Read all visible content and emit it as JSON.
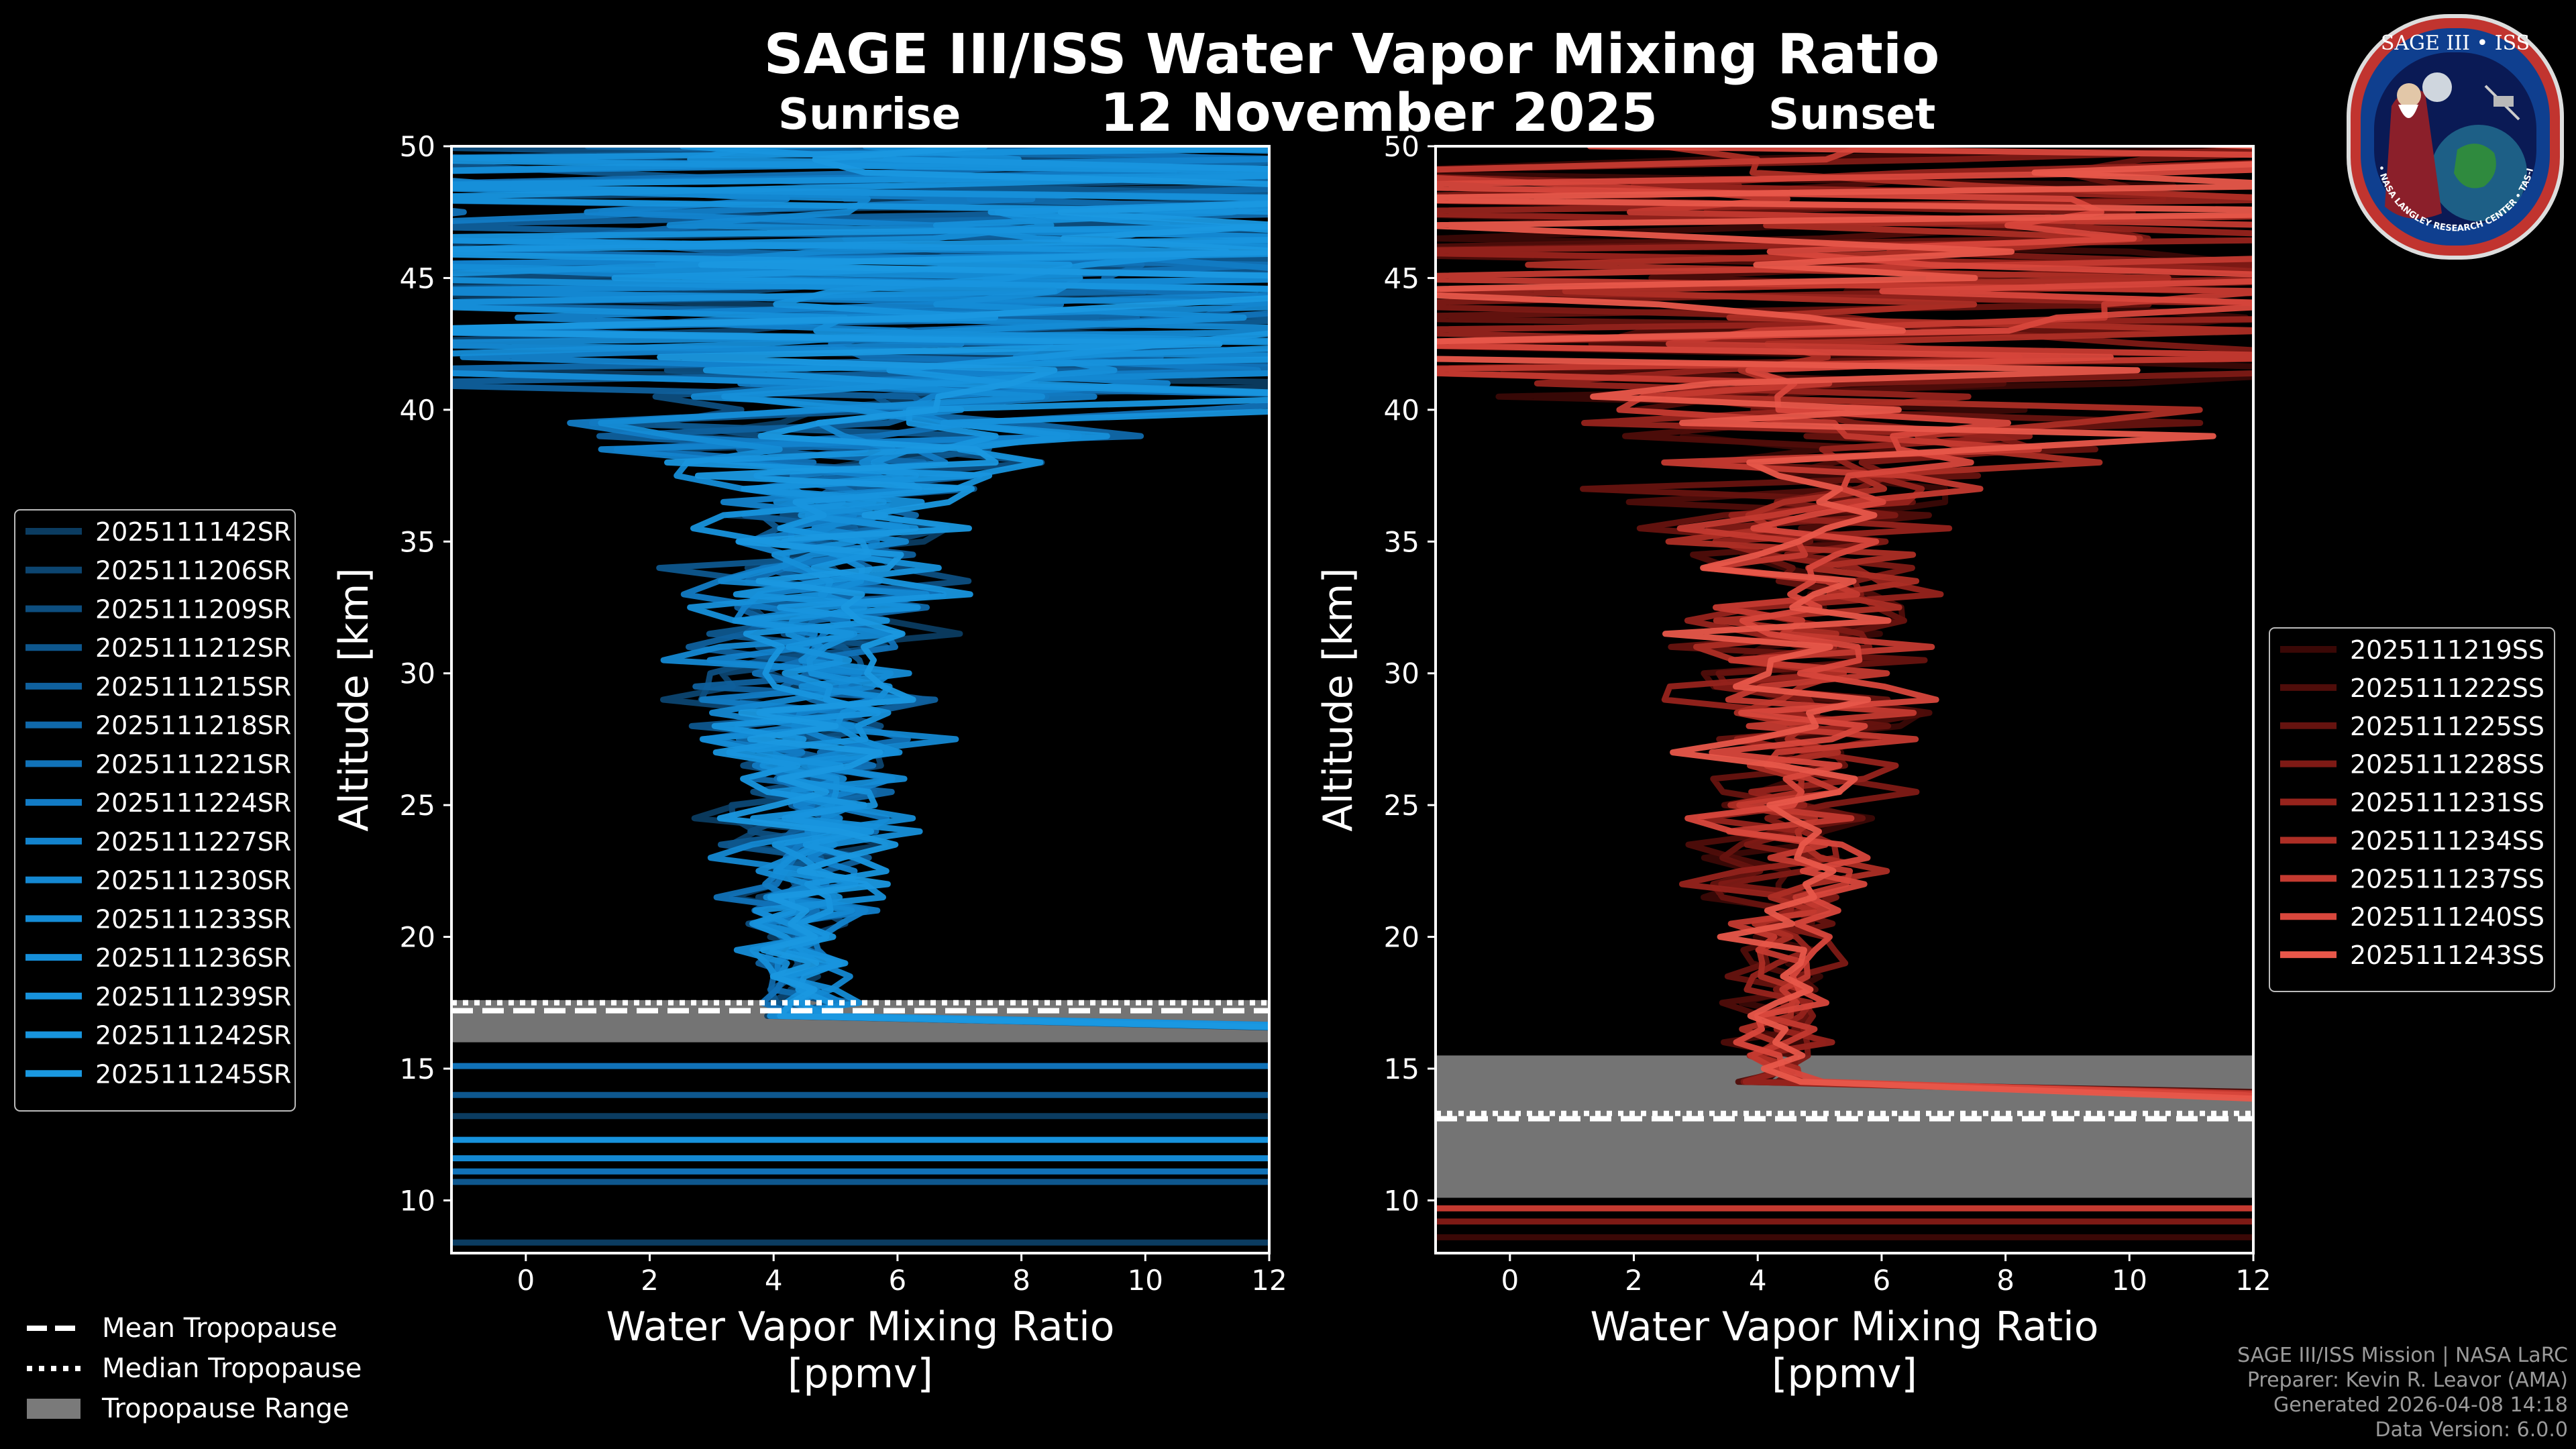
{
  "header": {
    "title": "SAGE III/ISS Water Vapor Mixing Ratio",
    "date": "12 November 2025",
    "left_label": "Sunrise",
    "right_label": "Sunset"
  },
  "footer": {
    "line1": "SAGE III/ISS Mission | NASA LaRC",
    "line2": "Preparer: Kevin R. Leavor (AMA)",
    "line3": "Generated 2026-04-08 14:18",
    "line4": "Data Version: 6.0.0"
  },
  "logo": {
    "text_top": "SAGE III • ISS",
    "text_ring": "BALL • NASA LANGLEY RESEARCH CENTER • TAS-I • ESA"
  },
  "legend_bottom": [
    {
      "label": "Mean Tropopause",
      "style": "dashed"
    },
    {
      "label": "Median Tropopause",
      "style": "dotted"
    },
    {
      "label": "Tropopause Range",
      "style": "patch"
    }
  ],
  "colors": {
    "background": "#000000",
    "sunrise": "#1a8fd6",
    "sunset": "#e8574a",
    "tropopause_range": "#7a7a7a"
  },
  "chart_data": [
    {
      "type": "line",
      "panel": "Sunrise",
      "xlabel": "Water Vapor Mixing Ratio",
      "xlabel2": "[ppmv]",
      "ylabel": "Altitude [km]",
      "xlim": [
        -1.2,
        12
      ],
      "ylim": [
        8,
        50
      ],
      "xticks": [
        0,
        2,
        4,
        6,
        8,
        10,
        12
      ],
      "yticks": [
        10,
        15,
        20,
        25,
        30,
        35,
        40,
        45,
        50
      ],
      "tropopause": {
        "mean": 17.2,
        "median": 17.5,
        "range": [
          16.0,
          17.6
        ]
      },
      "series": [
        {
          "name": "2025111142SR",
          "color": "#0b3c61"
        },
        {
          "name": "2025111206SR",
          "color": "#0c4570"
        },
        {
          "name": "2025111209SR",
          "color": "#0d4e7f"
        },
        {
          "name": "2025111212SR",
          "color": "#0e578e"
        },
        {
          "name": "2025111215SR",
          "color": "#0f609d"
        },
        {
          "name": "2025111218SR",
          "color": "#1069ab"
        },
        {
          "name": "2025111221SR",
          "color": "#1172b8"
        },
        {
          "name": "2025111224SR",
          "color": "#127bc4"
        },
        {
          "name": "2025111227SR",
          "color": "#1383cd"
        },
        {
          "name": "2025111230SR",
          "color": "#1488d2"
        },
        {
          "name": "2025111233SR",
          "color": "#158cd6"
        },
        {
          "name": "2025111236SR",
          "color": "#168fd9"
        },
        {
          "name": "2025111239SR",
          "color": "#1792dc"
        },
        {
          "name": "2025111242SR",
          "color": "#1895de"
        },
        {
          "name": "2025111245SR",
          "color": "#1a98e0"
        }
      ]
    },
    {
      "type": "line",
      "panel": "Sunset",
      "xlabel": "Water Vapor Mixing Ratio",
      "xlabel2": "[ppmv]",
      "ylabel": "Altitude [km]",
      "xlim": [
        -1.2,
        12
      ],
      "ylim": [
        8,
        50
      ],
      "xticks": [
        0,
        2,
        4,
        6,
        8,
        10,
        12
      ],
      "yticks": [
        10,
        15,
        20,
        25,
        30,
        35,
        40,
        45,
        50
      ],
      "tropopause": {
        "mean": 13.1,
        "median": 13.3,
        "range": [
          10.1,
          15.5
        ]
      },
      "series": [
        {
          "name": "2025111219SS",
          "color": "#3a0806"
        },
        {
          "name": "2025111222SS",
          "color": "#4f0d0a"
        },
        {
          "name": "2025111225SS",
          "color": "#66130f"
        },
        {
          "name": "2025111228SS",
          "color": "#7e1a15"
        },
        {
          "name": "2025111231SS",
          "color": "#96231c"
        },
        {
          "name": "2025111234SS",
          "color": "#ad2e25"
        },
        {
          "name": "2025111237SS",
          "color": "#c43a30"
        },
        {
          "name": "2025111240SS",
          "color": "#d8473c"
        },
        {
          "name": "2025111243SS",
          "color": "#e8574a"
        }
      ]
    }
  ]
}
